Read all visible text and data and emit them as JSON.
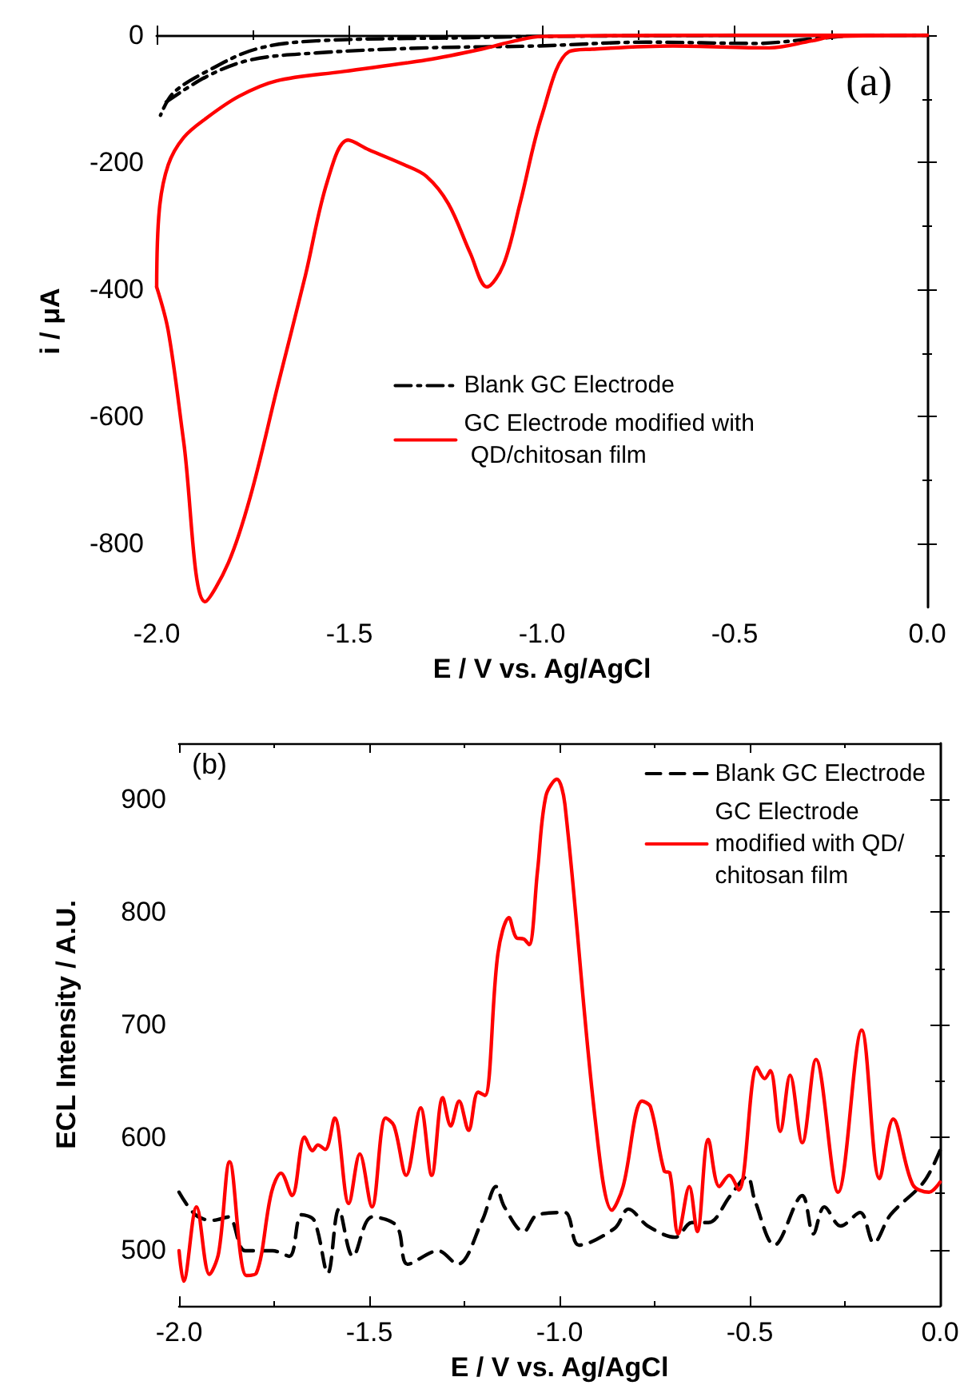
{
  "chart_data": [
    {
      "type": "line",
      "xlabel": "E / V vs. Ag/AgCl",
      "ylabel": "i / μA",
      "xlim": [
        -2.0,
        0.0
      ],
      "xticks": [
        {
          "value": -2.0,
          "label": "-2.0"
        },
        {
          "value": -1.5,
          "label": "-1.5"
        },
        {
          "value": -1.0,
          "label": "-1.0"
        },
        {
          "value": -0.5,
          "label": "-0.5"
        },
        {
          "value": 0.0,
          "label": "0.0"
        }
      ],
      "ylim": [
        -900,
        0
      ],
      "yticks": [
        -800,
        -600,
        -400,
        -200,
        0
      ],
      "grid": false,
      "legend": "center",
      "marker": "none",
      "annotations": [
        "(a)"
      ],
      "series": [
        {
          "name": "Blank GC Electrode",
          "color": "#000000",
          "line_style": "dashdot",
          "x": [
            -0.5,
            -1.0,
            -1.2,
            -1.586,
            -1.743,
            -1.87,
            -1.957,
            -1.99
          ],
          "values": [
            0,
            -2,
            -4,
            -9,
            -22,
            -57,
            -91,
            -126
          ]
        },
        {
          "color": "#000000",
          "line_style": "dashdot",
          "x": [
            -1.975,
            -1.87,
            -1.757,
            -1.586,
            -1.3,
            -1.014,
            -0.73,
            -0.443,
            -0.3,
            -0.157,
            0.0
          ],
          "values": [
            -105,
            -65,
            -39,
            -28,
            -20,
            -17,
            -11,
            -13,
            -6,
            0,
            0
          ]
        },
        {
          "name": "GC Electrode modified with QD/chitosan film",
          "color": "#ff0000",
          "line_style": "solid",
          "x": [
            0.0,
            -0.24,
            -0.3,
            -0.41,
            -0.66,
            -0.87,
            -0.93,
            -1.0,
            -1.057,
            -1.1,
            -1.143,
            -1.186,
            -1.243,
            -1.3,
            -1.357,
            -1.45,
            -1.503,
            -1.557,
            -1.614,
            -1.686,
            -1.757,
            -1.814,
            -1.874,
            -1.93,
            -1.97,
            -2.0
          ],
          "values": [
            0,
            -2,
            -9,
            -20,
            -17,
            -22,
            -26,
            -126,
            -265,
            -361,
            -396,
            -343,
            -265,
            -222,
            -204,
            -180,
            -165,
            -230,
            -378,
            -552,
            -726,
            -830,
            -891,
            -639,
            -465,
            -396
          ]
        },
        {
          "color": "#ff0000",
          "line_style": "solid",
          "x": [
            -2.0,
            -1.993,
            -1.97,
            -1.93,
            -1.87,
            -1.786,
            -1.69,
            -1.514,
            -1.3,
            -1.157,
            -1.07,
            -1.0,
            -0.5,
            0.0
          ],
          "values": [
            -396,
            -274,
            -204,
            -161,
            -130,
            -96,
            -72,
            -57,
            -39,
            -22,
            -9,
            -2,
            0,
            0
          ]
        }
      ]
    },
    {
      "type": "line",
      "xlabel": "E / V vs. Ag/AgCl",
      "ylabel": "ECL Intensity / A.U.",
      "xlim": [
        -2.0,
        0.0
      ],
      "xticks": [
        {
          "value": -2.0,
          "label": "-2.0"
        },
        {
          "value": -1.5,
          "label": "-1.5"
        },
        {
          "value": -1.0,
          "label": "-1.0"
        },
        {
          "value": -0.5,
          "label": "-0.5"
        },
        {
          "value": 0.0,
          "label": "0.0"
        }
      ],
      "ylim": [
        450,
        950
      ],
      "yticks": [
        500,
        600,
        700,
        800,
        900
      ],
      "grid": false,
      "legend": "top right",
      "marker": "none",
      "annotations": [
        "(b)"
      ],
      "series": [
        {
          "name": "Blank GC Electrode",
          "color": "#000000",
          "line_style": "dashed",
          "x": [
            -2.0,
            -1.957,
            -1.913,
            -1.87,
            -1.826,
            -1.754,
            -1.71,
            -1.678,
            -1.645,
            -1.609,
            -1.58,
            -1.543,
            -1.493,
            -1.428,
            -1.399,
            -1.319,
            -1.268,
            -1.203,
            -1.167,
            -1.145,
            -1.094,
            -1.058,
            -0.986,
            -0.949,
            -0.855,
            -0.819,
            -0.768,
            -0.696,
            -0.652,
            -0.609,
            -0.551,
            -0.507,
            -0.486,
            -0.435,
            -0.362,
            -0.333,
            -0.304,
            -0.261,
            -0.21,
            -0.174,
            -0.13,
            -0.043,
            0.0
          ],
          "values": [
            551,
            531,
            526,
            529,
            499,
            499,
            494,
            531,
            526,
            479,
            536,
            494,
            529,
            521,
            487,
            499,
            487,
            526,
            556,
            538,
            516,
            531,
            533,
            504,
            519,
            536,
            521,
            511,
            524,
            524,
            548,
            565,
            543,
            504,
            548,
            514,
            538,
            521,
            533,
            506,
            531,
            560,
            588
          ]
        },
        {
          "name": "GC Electrode modified with QD/chitosan film",
          "color": "#ff0000",
          "line_style": "solid",
          "x": [
            -2.0,
            -1.988,
            -1.954,
            -1.92,
            -1.896,
            -1.867,
            -1.823,
            -1.797,
            -1.757,
            -1.732,
            -1.703,
            -1.67,
            -1.649,
            -1.635,
            -1.616,
            -1.591,
            -1.554,
            -1.525,
            -1.493,
            -1.457,
            -1.435,
            -1.403,
            -1.365,
            -1.336,
            -1.307,
            -1.286,
            -1.264,
            -1.239,
            -1.214,
            -1.196,
            -1.162,
            -1.133,
            -1.113,
            -1.094,
            -1.08,
            -1.058,
            -1.036,
            -1.007,
            -0.986,
            -0.906,
            -0.862,
            -0.833,
            -0.783,
            -0.761,
            -0.725,
            -0.71,
            -0.688,
            -0.659,
            -0.638,
            -0.609,
            -0.58,
            -0.554,
            -0.529,
            -0.481,
            -0.461,
            -0.446,
            -0.42,
            -0.394,
            -0.362,
            -0.326,
            -0.268,
            -0.206,
            -0.159,
            -0.123,
            -0.072,
            -0.029,
            0.0
          ],
          "values": [
            499,
            472,
            538,
            478,
            497,
            578,
            477,
            479,
            551,
            568,
            548,
            600,
            588,
            593,
            589,
            617,
            541,
            585,
            538,
            617,
            610,
            566,
            626,
            566,
            635,
            610,
            632,
            606,
            640,
            637,
            763,
            795,
            777,
            776,
            771,
            836,
            903,
            918,
            896,
            615,
            535,
            556,
            632,
            627,
            570,
            568,
            514,
            556,
            516,
            598,
            556,
            566,
            553,
            662,
            652,
            659,
            605,
            655,
            595,
            669,
            551,
            695,
            563,
            616,
            558,
            551,
            560
          ]
        }
      ]
    }
  ]
}
